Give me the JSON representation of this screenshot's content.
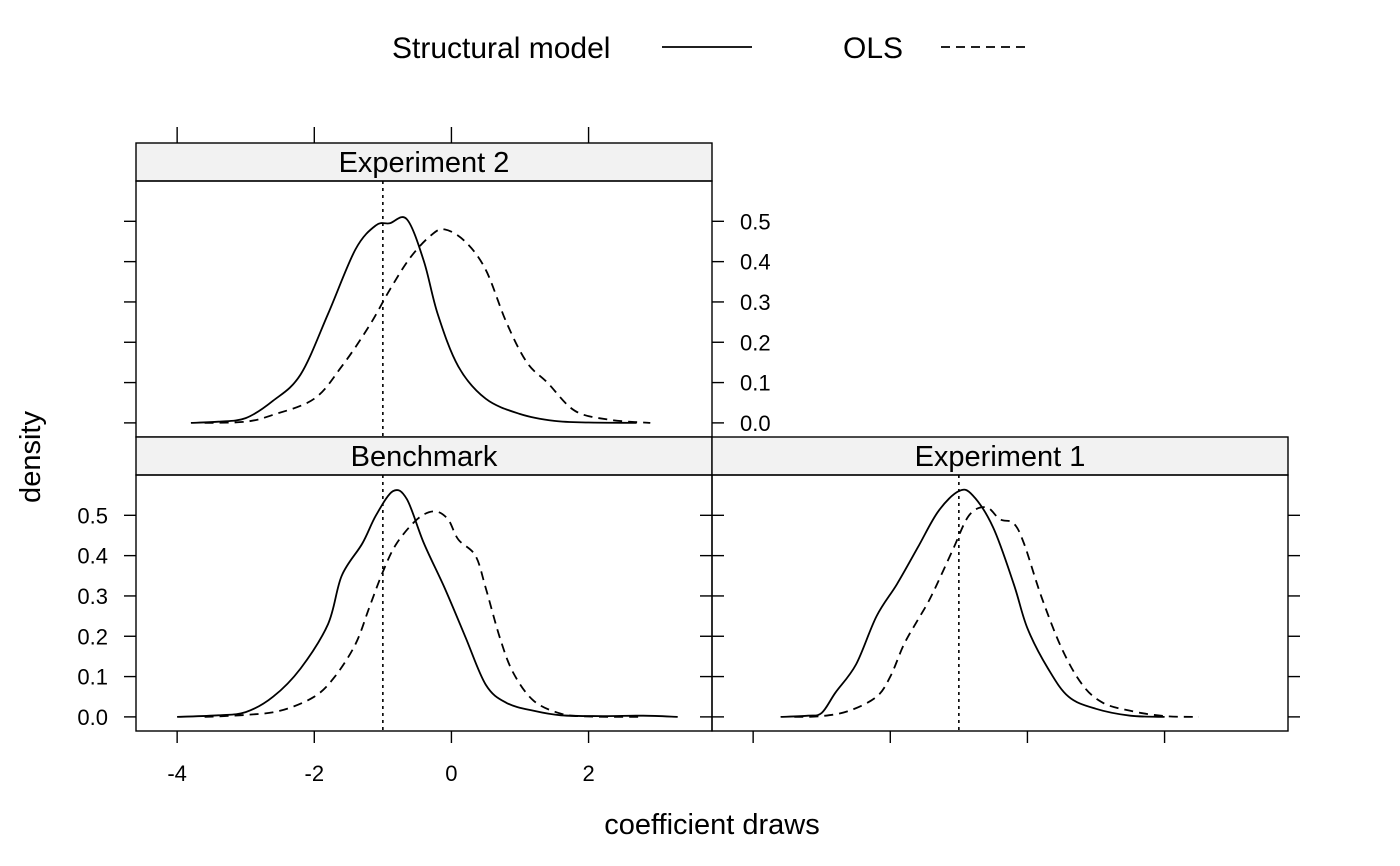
{
  "chart_data": {
    "type": "line",
    "subtype": "density-lattice",
    "xlabel": "coefficient draws",
    "ylabel": "density",
    "xlim": [
      -4.6,
      3.8
    ],
    "ylim": [
      -0.035,
      0.6
    ],
    "x_ticks": [
      -4,
      -2,
      0,
      2
    ],
    "y_ticks": [
      0.0,
      0.1,
      0.2,
      0.3,
      0.4,
      0.5
    ],
    "x_tick_labels": [
      "-4",
      "-2",
      "0",
      "2"
    ],
    "y_tick_labels": [
      "0.0",
      "0.1",
      "0.2",
      "0.3",
      "0.4",
      "0.5"
    ],
    "reference_line_x": -1,
    "legend": {
      "position": "top",
      "entries": [
        {
          "label": "Structural model",
          "line_style": "solid"
        },
        {
          "label": "OLS",
          "line_style": "dashed"
        }
      ]
    },
    "panels": [
      {
        "name": "Experiment 2",
        "grid_position": "top-left",
        "series": [
          {
            "name": "Structural model",
            "style": "solid",
            "points": [
              [
                -3.8,
                0
              ],
              [
                -3.4,
                0.003
              ],
              [
                -3.0,
                0.012
              ],
              [
                -2.6,
                0.055
              ],
              [
                -2.2,
                0.12
              ],
              [
                -1.8,
                0.27
              ],
              [
                -1.4,
                0.43
              ],
              [
                -1.1,
                0.49
              ],
              [
                -0.9,
                0.495
              ],
              [
                -0.65,
                0.505
              ],
              [
                -0.4,
                0.4
              ],
              [
                -0.2,
                0.27
              ],
              [
                0.1,
                0.14
              ],
              [
                0.5,
                0.06
              ],
              [
                1.0,
                0.022
              ],
              [
                1.5,
                0.005
              ],
              [
                2.0,
                0.001
              ],
              [
                2.7,
                0
              ]
            ]
          },
          {
            "name": "OLS",
            "style": "dashed",
            "points": [
              [
                -3.6,
                0
              ],
              [
                -3.0,
                0.003
              ],
              [
                -2.6,
                0.02
              ],
              [
                -2.0,
                0.06
              ],
              [
                -1.6,
                0.14
              ],
              [
                -1.2,
                0.24
              ],
              [
                -0.9,
                0.33
              ],
              [
                -0.6,
                0.41
              ],
              [
                -0.3,
                0.465
              ],
              [
                -0.1,
                0.48
              ],
              [
                0.2,
                0.45
              ],
              [
                0.5,
                0.38
              ],
              [
                0.8,
                0.25
              ],
              [
                1.1,
                0.15
              ],
              [
                1.4,
                0.1
              ],
              [
                1.8,
                0.03
              ],
              [
                2.3,
                0.008
              ],
              [
                2.9,
                0
              ]
            ]
          }
        ]
      },
      {
        "name": "Benchmark",
        "grid_position": "bottom-left",
        "series": [
          {
            "name": "Structural model",
            "style": "solid",
            "points": [
              [
                -4.0,
                0
              ],
              [
                -3.4,
                0.004
              ],
              [
                -3.0,
                0.012
              ],
              [
                -2.6,
                0.05
              ],
              [
                -2.2,
                0.12
              ],
              [
                -1.8,
                0.23
              ],
              [
                -1.6,
                0.35
              ],
              [
                -1.3,
                0.43
              ],
              [
                -1.1,
                0.5
              ],
              [
                -0.85,
                0.56
              ],
              [
                -0.65,
                0.54
              ],
              [
                -0.4,
                0.43
              ],
              [
                -0.1,
                0.32
              ],
              [
                0.2,
                0.2
              ],
              [
                0.5,
                0.08
              ],
              [
                0.8,
                0.035
              ],
              [
                1.2,
                0.015
              ],
              [
                1.6,
                0.004
              ],
              [
                2.2,
                0.002
              ],
              [
                2.8,
                0.003
              ],
              [
                3.3,
                0
              ]
            ]
          },
          {
            "name": "OLS",
            "style": "dashed",
            "points": [
              [
                -3.6,
                0
              ],
              [
                -3.0,
                0.005
              ],
              [
                -2.5,
                0.015
              ],
              [
                -2.0,
                0.05
              ],
              [
                -1.7,
                0.1
              ],
              [
                -1.4,
                0.18
              ],
              [
                -1.2,
                0.27
              ],
              [
                -1.0,
                0.36
              ],
              [
                -0.8,
                0.43
              ],
              [
                -0.5,
                0.49
              ],
              [
                -0.25,
                0.51
              ],
              [
                -0.05,
                0.49
              ],
              [
                0.1,
                0.44
              ],
              [
                0.35,
                0.4
              ],
              [
                0.5,
                0.32
              ],
              [
                0.7,
                0.2
              ],
              [
                0.9,
                0.11
              ],
              [
                1.2,
                0.04
              ],
              [
                1.6,
                0.008
              ],
              [
                2.0,
                0.001
              ],
              [
                2.8,
                0
              ]
            ]
          }
        ]
      },
      {
        "name": "Experiment 1",
        "grid_position": "bottom-right",
        "series": [
          {
            "name": "Structural model",
            "style": "solid",
            "points": [
              [
                -3.6,
                0
              ],
              [
                -3.2,
                0.003
              ],
              [
                -3.0,
                0.01
              ],
              [
                -2.8,
                0.06
              ],
              [
                -2.5,
                0.13
              ],
              [
                -2.2,
                0.25
              ],
              [
                -1.9,
                0.33
              ],
              [
                -1.6,
                0.42
              ],
              [
                -1.3,
                0.51
              ],
              [
                -1.0,
                0.56
              ],
              [
                -0.8,
                0.55
              ],
              [
                -0.5,
                0.47
              ],
              [
                -0.2,
                0.33
              ],
              [
                0.0,
                0.22
              ],
              [
                0.3,
                0.12
              ],
              [
                0.6,
                0.05
              ],
              [
                1.0,
                0.02
              ],
              [
                1.5,
                0.003
              ],
              [
                2.0,
                0
              ]
            ]
          },
          {
            "name": "OLS",
            "style": "dashed",
            "points": [
              [
                -3.4,
                0
              ],
              [
                -3.0,
                0.002
              ],
              [
                -2.6,
                0.015
              ],
              [
                -2.2,
                0.05
              ],
              [
                -2.0,
                0.1
              ],
              [
                -1.8,
                0.18
              ],
              [
                -1.6,
                0.24
              ],
              [
                -1.4,
                0.3
              ],
              [
                -1.1,
                0.41
              ],
              [
                -0.85,
                0.5
              ],
              [
                -0.6,
                0.52
              ],
              [
                -0.4,
                0.49
              ],
              [
                -0.2,
                0.48
              ],
              [
                -0.05,
                0.43
              ],
              [
                0.2,
                0.3
              ],
              [
                0.5,
                0.17
              ],
              [
                0.8,
                0.08
              ],
              [
                1.1,
                0.035
              ],
              [
                1.5,
                0.015
              ],
              [
                2.0,
                0.002
              ],
              [
                2.5,
                0
              ]
            ]
          }
        ]
      }
    ]
  }
}
